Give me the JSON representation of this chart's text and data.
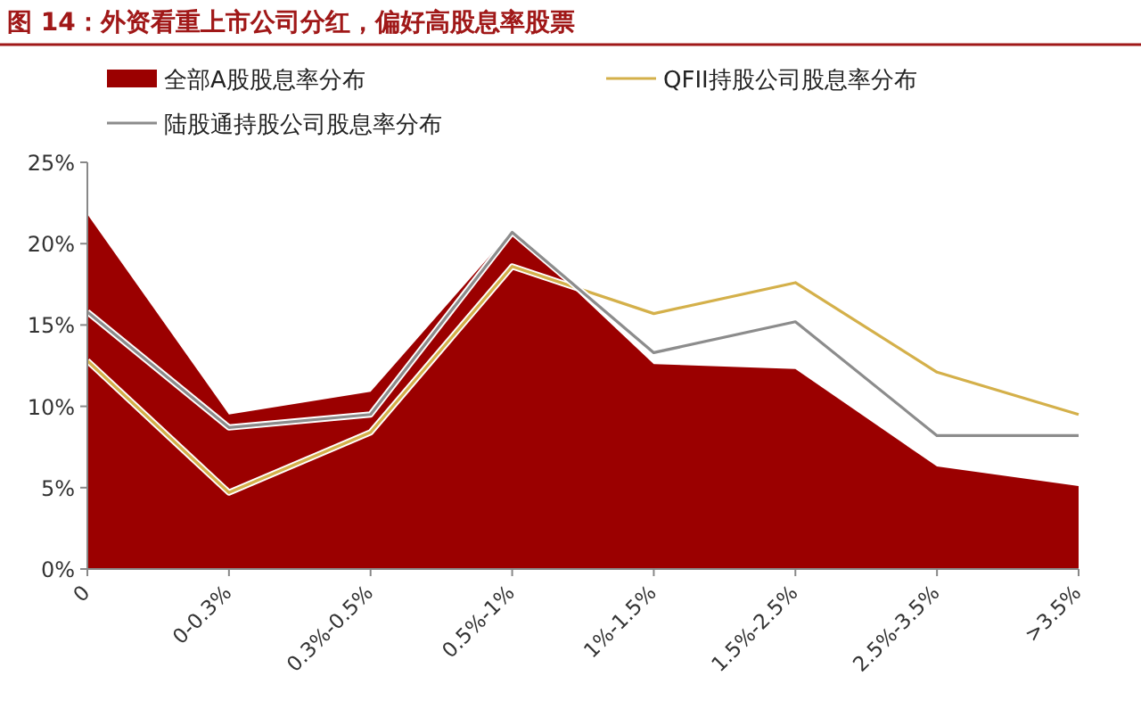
{
  "chart_data": {
    "type": "area",
    "title": "图 14：外资看重上市公司分红，偏好高股息率股票",
    "categories": [
      "0",
      "0-0.3%",
      "0.3%-0.5%",
      "0.5%-1%",
      "1%-1.5%",
      "1.5%-2.5%",
      "2.5%-3.5%",
      ">3.5%"
    ],
    "series": [
      {
        "name": "全部A股股息率分布",
        "color": "#9b0000",
        "values": [
          21.8,
          9.5,
          10.9,
          20.8,
          12.6,
          12.3,
          6.3,
          5.1
        ]
      },
      {
        "name": "QFII持股公司股息率分布",
        "type": "line",
        "color": "#d4b04a",
        "values": [
          12.8,
          4.7,
          8.4,
          18.6,
          15.7,
          17.6,
          12.1,
          9.5
        ]
      },
      {
        "name": "陆股通持股公司股息率分布",
        "type": "line",
        "color": "#8c8c8c",
        "values": [
          15.8,
          8.7,
          9.5,
          20.7,
          13.3,
          15.2,
          8.2,
          8.2
        ]
      }
    ],
    "ylim": [
      0,
      25
    ],
    "yticks": [
      {
        "value": 0,
        "label": "0%"
      },
      {
        "value": 5,
        "label": "5%"
      },
      {
        "value": 10,
        "label": "10%"
      },
      {
        "value": 15,
        "label": "15%"
      },
      {
        "value": 20,
        "label": "20%"
      },
      {
        "value": 25,
        "label": "25%"
      }
    ],
    "grid": false,
    "legend": "top",
    "marker": "none",
    "line_style": "solid"
  }
}
